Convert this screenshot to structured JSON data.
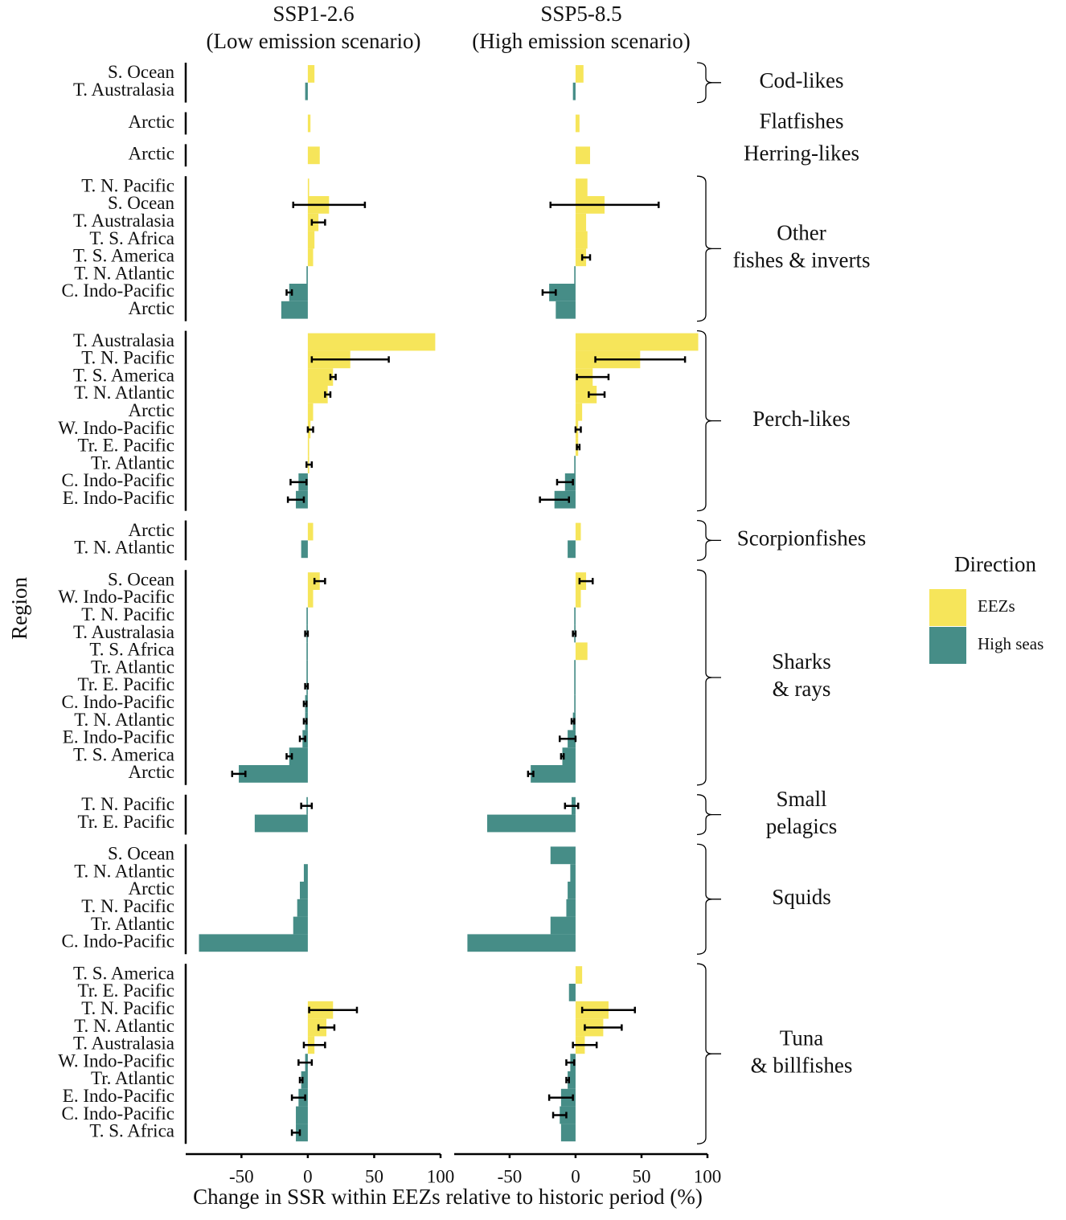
{
  "chart_data": {
    "type": "bar",
    "orientation": "horizontal",
    "facets": [
      [
        "SSP1-2.6",
        "(Low emission scenario)"
      ],
      [
        "SSP5-8.5",
        "(High emission scenario)"
      ]
    ],
    "xlabel": "Change in SSR within EEZs relative to historic period (%)",
    "ylabel": "Region",
    "legend_title": "Direction",
    "series": [
      {
        "name": "EEZs",
        "color": "#f6e55a"
      },
      {
        "name": "High seas",
        "color": "#468d87"
      }
    ],
    "xlim": [
      -92,
      100
    ],
    "xticks": [
      -50,
      0,
      50,
      100
    ],
    "groups": [
      {
        "name": [
          "Cod-likes"
        ],
        "regions": [
          "S. Ocean",
          "T. Australasia"
        ],
        "values": [
          [
            5,
            -2
          ],
          [
            6,
            -2
          ]
        ],
        "errors": [
          [
            null,
            null
          ],
          [
            null,
            null
          ]
        ]
      },
      {
        "name": [
          "Flatfishes"
        ],
        "regions": [
          "Arctic"
        ],
        "values": [
          [
            2
          ],
          [
            3
          ]
        ],
        "errors": [
          [
            null
          ],
          [
            null
          ]
        ]
      },
      {
        "name": [
          "Herring-likes"
        ],
        "regions": [
          "Arctic"
        ],
        "values": [
          [
            9
          ],
          [
            11
          ]
        ],
        "errors": [
          [
            null
          ],
          [
            null
          ]
        ]
      },
      {
        "name": [
          "Other",
          "fishes & inverts"
        ],
        "regions": [
          "T. N. Pacific",
          "S. Ocean",
          "T. Australasia",
          "T. S. Africa",
          "T. S. America",
          "T. N. Atlantic",
          "C. Indo-Pacific",
          "Arctic"
        ],
        "values": [
          [
            1,
            16,
            8,
            5,
            4,
            -1,
            -14,
            -20
          ],
          [
            9,
            22,
            8,
            9,
            8,
            -1,
            -20,
            -15
          ]
        ],
        "errors": [
          [
            null,
            27,
            5,
            null,
            null,
            null,
            2,
            null
          ],
          [
            null,
            41,
            null,
            null,
            3,
            null,
            5,
            null
          ]
        ]
      },
      {
        "name": [
          "Perch-likes"
        ],
        "regions": [
          "T. Australasia",
          "T. N. Pacific",
          "T. S. America",
          "T. N. Atlantic",
          "Arctic",
          "W. Indo-Pacific",
          "Tr. E. Pacific",
          "Tr. Atlantic",
          "C. Indo-Pacific",
          "E. Indo-Pacific"
        ],
        "values": [
          [
            96,
            32,
            19,
            15,
            4,
            2,
            1,
            1,
            -7,
            -9
          ],
          [
            93,
            49,
            13,
            16,
            5,
            2,
            2,
            -1,
            -8,
            -16
          ]
        ],
        "errors": [
          [
            null,
            29,
            2,
            2,
            null,
            2,
            null,
            2,
            6,
            6
          ],
          [
            null,
            34,
            12,
            6,
            null,
            2,
            1,
            null,
            6,
            11
          ]
        ]
      },
      {
        "name": [
          "Scorpionfishes"
        ],
        "regions": [
          "Arctic",
          "T. N. Atlantic"
        ],
        "values": [
          [
            4,
            -5
          ],
          [
            4,
            -6
          ]
        ],
        "errors": [
          [
            null,
            null
          ],
          [
            null,
            null
          ]
        ]
      },
      {
        "name": [
          "Sharks",
          "& rays"
        ],
        "regions": [
          "S. Ocean",
          "W. Indo-Pacific",
          "T. N. Pacific",
          "T. Australasia",
          "T. S. Africa",
          "Tr. Atlantic",
          "Tr. E. Pacific",
          "C. Indo-Pacific",
          "T. N. Atlantic",
          "E. Indo-Pacific",
          "T. S. America",
          "Arctic"
        ],
        "values": [
          [
            9,
            4,
            -1,
            -1,
            -1,
            -1,
            -1,
            -2,
            -2,
            -4,
            -14,
            -52
          ],
          [
            8,
            4,
            -1,
            -1,
            9,
            -1,
            -1,
            -1,
            -2,
            -6,
            -10,
            -34
          ]
        ],
        "errors": [
          [
            4,
            null,
            null,
            1,
            null,
            null,
            1,
            1,
            1,
            2,
            2,
            5
          ],
          [
            5,
            null,
            null,
            1,
            null,
            null,
            null,
            null,
            1,
            6,
            1,
            2
          ]
        ]
      },
      {
        "name": [
          "Small",
          "pelagics"
        ],
        "regions": [
          "T. N. Pacific",
          "Tr. E. Pacific"
        ],
        "values": [
          [
            -1,
            -40
          ],
          [
            -3,
            -67
          ]
        ],
        "errors": [
          [
            4,
            null
          ],
          [
            5,
            null
          ]
        ]
      },
      {
        "name": [
          "Squids"
        ],
        "regions": [
          "S. Ocean",
          "T. N. Atlantic",
          "Arctic",
          "T. N. Pacific",
          "Tr. Atlantic",
          "C. Indo-Pacific"
        ],
        "values": [
          [
            0,
            -3,
            -6,
            -8,
            -11,
            -82
          ],
          [
            -19,
            -4,
            -6,
            -7,
            -19,
            -82
          ]
        ],
        "errors": [
          [
            null,
            null,
            null,
            null,
            null,
            null
          ],
          [
            null,
            null,
            null,
            null,
            null,
            null
          ]
        ]
      },
      {
        "name": [
          "Tuna",
          "& billfishes"
        ],
        "regions": [
          "T. S. America",
          "Tr. E. Pacific",
          "T. N. Pacific",
          "T. N. Atlantic",
          "T. Australasia",
          "W. Indo-Pacific",
          "Tr. Atlantic",
          "E. Indo-Pacific",
          "C. Indo-Pacific",
          "T. S. Africa"
        ],
        "values": [
          [
            0,
            0,
            19,
            14,
            5,
            -2,
            -5,
            -7,
            -9,
            -9
          ],
          [
            5,
            -5,
            25,
            21,
            7,
            -4,
            -6,
            -11,
            -12,
            -11
          ]
        ],
        "errors": [
          [
            null,
            null,
            18,
            6,
            8,
            5,
            1,
            5,
            null,
            3
          ],
          [
            null,
            null,
            20,
            14,
            9,
            3,
            1,
            9,
            5,
            null
          ]
        ]
      }
    ]
  }
}
